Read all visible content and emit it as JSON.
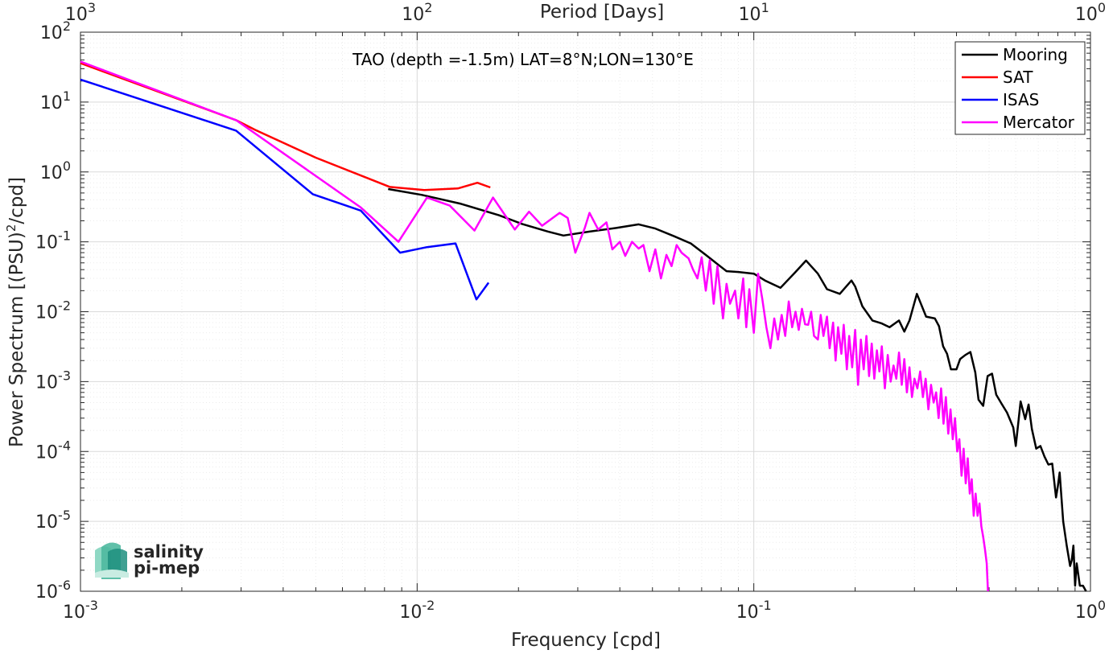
{
  "chart_data": {
    "type": "line",
    "title": "TAO (depth =-1.5m) LAT=8°N;LON=130°E",
    "xlabel": "Frequency [cpd]",
    "ylabel_main": "Power Spectrum [(PSU)",
    "ylabel_sup": "2",
    "ylabel_tail": "/cpd]",
    "top_xlabel": "Period [Days]",
    "x_scale": "log",
    "y_scale": "log",
    "xlim": [
      0.001,
      1
    ],
    "ylim": [
      1e-06,
      100
    ],
    "grid": true,
    "legend_position": "top-right",
    "x_ticks": [
      {
        "value": 0.001,
        "base": "10",
        "exp": "-3"
      },
      {
        "value": 0.01,
        "base": "10",
        "exp": "-2"
      },
      {
        "value": 0.1,
        "base": "10",
        "exp": "-1"
      },
      {
        "value": 1,
        "base": "10",
        "exp": "0"
      }
    ],
    "top_ticks": [
      {
        "value": 0.001,
        "base": "10",
        "exp": "3"
      },
      {
        "value": 0.01,
        "base": "10",
        "exp": "2"
      },
      {
        "value": 0.1,
        "base": "10",
        "exp": "1"
      },
      {
        "value": 1,
        "base": "10",
        "exp": "0"
      }
    ],
    "y_ticks": [
      {
        "value": 100,
        "base": "10",
        "exp": "2"
      },
      {
        "value": 10,
        "base": "10",
        "exp": "1"
      },
      {
        "value": 1,
        "base": "10",
        "exp": "0"
      },
      {
        "value": 0.1,
        "base": "10",
        "exp": "-1"
      },
      {
        "value": 0.01,
        "base": "10",
        "exp": "-2"
      },
      {
        "value": 0.001,
        "base": "10",
        "exp": "-3"
      },
      {
        "value": 0.0001,
        "base": "10",
        "exp": "-4"
      },
      {
        "value": 1e-05,
        "base": "10",
        "exp": "-5"
      },
      {
        "value": 1e-06,
        "base": "10",
        "exp": "-6"
      }
    ],
    "series": [
      {
        "name": "Mooring",
        "color": "#000000",
        "points": [
          [
            0.0082,
            0.57
          ],
          [
            0.0103,
            0.47
          ],
          [
            0.0135,
            0.35
          ],
          [
            0.0175,
            0.24
          ],
          [
            0.0205,
            0.18
          ],
          [
            0.0245,
            0.14
          ],
          [
            0.0272,
            0.123
          ],
          [
            0.0325,
            0.14
          ],
          [
            0.039,
            0.158
          ],
          [
            0.0455,
            0.178
          ],
          [
            0.051,
            0.155
          ],
          [
            0.058,
            0.12
          ],
          [
            0.065,
            0.095
          ],
          [
            0.072,
            0.065
          ],
          [
            0.078,
            0.048
          ],
          [
            0.083,
            0.038
          ],
          [
            0.09,
            0.037
          ],
          [
            0.1,
            0.035
          ],
          [
            0.108,
            0.028
          ],
          [
            0.12,
            0.022
          ],
          [
            0.133,
            0.037
          ],
          [
            0.143,
            0.054
          ],
          [
            0.155,
            0.035
          ],
          [
            0.165,
            0.021
          ],
          [
            0.18,
            0.018
          ],
          [
            0.195,
            0.028
          ],
          [
            0.2,
            0.023
          ],
          [
            0.21,
            0.012
          ],
          [
            0.225,
            0.0075
          ],
          [
            0.24,
            0.0068
          ],
          [
            0.253,
            0.006
          ],
          [
            0.27,
            0.0075
          ],
          [
            0.28,
            0.0052
          ],
          [
            0.29,
            0.0075
          ],
          [
            0.305,
            0.018
          ],
          [
            0.325,
            0.0085
          ],
          [
            0.345,
            0.008
          ],
          [
            0.355,
            0.0062
          ],
          [
            0.365,
            0.0032
          ],
          [
            0.375,
            0.0025
          ],
          [
            0.385,
            0.0015
          ],
          [
            0.4,
            0.0015
          ],
          [
            0.41,
            0.0021
          ],
          [
            0.425,
            0.0024
          ],
          [
            0.44,
            0.00265
          ],
          [
            0.455,
            0.00135
          ],
          [
            0.465,
            0.00055
          ],
          [
            0.48,
            0.00045
          ],
          [
            0.495,
            0.0012
          ],
          [
            0.51,
            0.0013
          ],
          [
            0.525,
            0.00065
          ],
          [
            0.545,
            0.00048
          ],
          [
            0.565,
            0.00036
          ],
          [
            0.59,
            0.00022
          ],
          [
            0.6,
            0.00012
          ],
          [
            0.62,
            0.00052
          ],
          [
            0.64,
            0.00029
          ],
          [
            0.655,
            0.00047
          ],
          [
            0.67,
            0.00021
          ],
          [
            0.69,
            0.00011
          ],
          [
            0.71,
            0.00012
          ],
          [
            0.73,
            8.5e-05
          ],
          [
            0.75,
            6.5e-05
          ],
          [
            0.77,
            6.7e-05
          ],
          [
            0.79,
            2.2e-05
          ],
          [
            0.8,
            3.2e-05
          ],
          [
            0.81,
            5e-05
          ],
          [
            0.83,
            1e-05
          ],
          [
            0.85,
            4.5e-06
          ],
          [
            0.87,
            2.3e-06
          ],
          [
            0.88,
            2.8e-06
          ],
          [
            0.89,
            4.5e-06
          ],
          [
            0.9,
            1.2e-06
          ],
          [
            0.91,
            2.5e-06
          ],
          [
            0.93,
            1.2e-06
          ],
          [
            0.95,
            1.2e-06
          ],
          [
            0.97,
            1e-06
          ]
        ]
      },
      {
        "name": "SAT",
        "color": "#ff0000",
        "points": [
          [
            0.001,
            36
          ],
          [
            0.0029,
            5.5
          ],
          [
            0.0033,
            4
          ],
          [
            0.005,
            1.6
          ],
          [
            0.0083,
            0.61
          ],
          [
            0.0105,
            0.55
          ],
          [
            0.0132,
            0.58
          ],
          [
            0.0151,
            0.7
          ],
          [
            0.0165,
            0.6
          ]
        ]
      },
      {
        "name": "ISAS",
        "color": "#0000ff",
        "points": [
          [
            0.001,
            21
          ],
          [
            0.0029,
            3.9
          ],
          [
            0.0049,
            0.48
          ],
          [
            0.0068,
            0.28
          ],
          [
            0.0089,
            0.07
          ],
          [
            0.0107,
            0.084
          ],
          [
            0.013,
            0.095
          ],
          [
            0.015,
            0.015
          ],
          [
            0.0163,
            0.026
          ]
        ]
      },
      {
        "name": "Mercator",
        "color": "#ff00ff",
        "points": [
          [
            0.001,
            38
          ],
          [
            0.0029,
            5.5
          ],
          [
            0.0068,
            0.31
          ],
          [
            0.0088,
            0.1
          ],
          [
            0.0107,
            0.43
          ],
          [
            0.0125,
            0.33
          ],
          [
            0.0148,
            0.145
          ],
          [
            0.0168,
            0.43
          ],
          [
            0.0195,
            0.15
          ],
          [
            0.0215,
            0.27
          ],
          [
            0.0235,
            0.17
          ],
          [
            0.0265,
            0.26
          ],
          [
            0.028,
            0.22
          ],
          [
            0.0295,
            0.07
          ],
          [
            0.0315,
            0.16
          ],
          [
            0.0325,
            0.26
          ],
          [
            0.0345,
            0.15
          ],
          [
            0.0365,
            0.19
          ],
          [
            0.038,
            0.078
          ],
          [
            0.04,
            0.1
          ],
          [
            0.0415,
            0.063
          ],
          [
            0.0435,
            0.1
          ],
          [
            0.0455,
            0.08
          ],
          [
            0.047,
            0.09
          ],
          [
            0.049,
            0.038
          ],
          [
            0.051,
            0.078
          ],
          [
            0.053,
            0.03
          ],
          [
            0.055,
            0.065
          ],
          [
            0.057,
            0.045
          ],
          [
            0.059,
            0.09
          ],
          [
            0.061,
            0.07
          ],
          [
            0.064,
            0.058
          ],
          [
            0.066,
            0.04
          ],
          [
            0.068,
            0.03
          ],
          [
            0.07,
            0.06
          ],
          [
            0.072,
            0.02
          ],
          [
            0.074,
            0.055
          ],
          [
            0.076,
            0.013
          ],
          [
            0.078,
            0.045
          ],
          [
            0.081,
            0.008
          ],
          [
            0.083,
            0.025
          ],
          [
            0.085,
            0.013
          ],
          [
            0.088,
            0.02
          ],
          [
            0.09,
            0.008
          ],
          [
            0.093,
            0.03
          ],
          [
            0.095,
            0.006
          ],
          [
            0.097,
            0.021
          ],
          [
            0.1,
            0.005
          ],
          [
            0.103,
            0.035
          ],
          [
            0.106,
            0.015
          ],
          [
            0.109,
            0.006
          ],
          [
            0.112,
            0.003
          ],
          [
            0.115,
            0.008
          ],
          [
            0.118,
            0.004
          ],
          [
            0.121,
            0.009
          ],
          [
            0.124,
            0.0045
          ],
          [
            0.127,
            0.014
          ],
          [
            0.13,
            0.006
          ],
          [
            0.133,
            0.01
          ],
          [
            0.136,
            0.0055
          ],
          [
            0.139,
            0.011
          ],
          [
            0.142,
            0.0066
          ],
          [
            0.145,
            0.0065
          ],
          [
            0.148,
            0.01
          ],
          [
            0.151,
            0.0045
          ],
          [
            0.155,
            0.004
          ],
          [
            0.158,
            0.009
          ],
          [
            0.161,
            0.0045
          ],
          [
            0.165,
            0.0085
          ],
          [
            0.168,
            0.003
          ],
          [
            0.172,
            0.007
          ],
          [
            0.175,
            0.002
          ],
          [
            0.178,
            0.006
          ],
          [
            0.182,
            0.0025
          ],
          [
            0.185,
            0.0065
          ],
          [
            0.189,
            0.0015
          ],
          [
            0.192,
            0.0045
          ],
          [
            0.196,
            0.0016
          ],
          [
            0.2,
            0.0055
          ],
          [
            0.204,
            0.0009
          ],
          [
            0.208,
            0.004
          ],
          [
            0.212,
            0.0015
          ],
          [
            0.216,
            0.0045
          ],
          [
            0.22,
            0.0012
          ],
          [
            0.224,
            0.0035
          ],
          [
            0.228,
            0.0011
          ],
          [
            0.232,
            0.0028
          ],
          [
            0.236,
            0.0014
          ],
          [
            0.24,
            0.0032
          ],
          [
            0.245,
            0.0008
          ],
          [
            0.25,
            0.0024
          ],
          [
            0.255,
            0.001
          ],
          [
            0.26,
            0.0017
          ],
          [
            0.265,
            0.0011
          ],
          [
            0.27,
            0.0026
          ],
          [
            0.275,
            0.0009
          ],
          [
            0.28,
            0.0021
          ],
          [
            0.285,
            0.0007
          ],
          [
            0.29,
            0.0016
          ],
          [
            0.295,
            0.0006
          ],
          [
            0.3,
            0.0011
          ],
          [
            0.306,
            0.0008
          ],
          [
            0.312,
            0.0014
          ],
          [
            0.318,
            0.0006
          ],
          [
            0.324,
            0.0011
          ],
          [
            0.33,
            0.0004
          ],
          [
            0.336,
            0.0009
          ],
          [
            0.342,
            0.0005
          ],
          [
            0.348,
            0.0007
          ],
          [
            0.354,
            0.0003
          ],
          [
            0.36,
            0.0008
          ],
          [
            0.366,
            0.00025
          ],
          [
            0.372,
            0.0006
          ],
          [
            0.378,
            0.00018
          ],
          [
            0.384,
            0.0004
          ],
          [
            0.39,
            0.00015
          ],
          [
            0.396,
            0.0003
          ],
          [
            0.402,
            0.0001
          ],
          [
            0.408,
            0.00015
          ],
          [
            0.414,
            4.5e-05
          ],
          [
            0.42,
            0.00011
          ],
          [
            0.426,
            3.5e-05
          ],
          [
            0.432,
            8e-05
          ],
          [
            0.438,
            2.5e-05
          ],
          [
            0.444,
            4e-05
          ],
          [
            0.45,
            1.2e-05
          ],
          [
            0.456,
            2.5e-05
          ],
          [
            0.462,
            1.2e-05
          ],
          [
            0.468,
            1.8e-05
          ],
          [
            0.474,
            8.5e-06
          ],
          [
            0.48,
            6e-06
          ],
          [
            0.486,
            4e-06
          ],
          [
            0.492,
            2.5e-06
          ],
          [
            0.496,
            1e-06
          ]
        ]
      }
    ]
  },
  "logo": {
    "line1": "salinity",
    "line2": "pi-mep"
  }
}
